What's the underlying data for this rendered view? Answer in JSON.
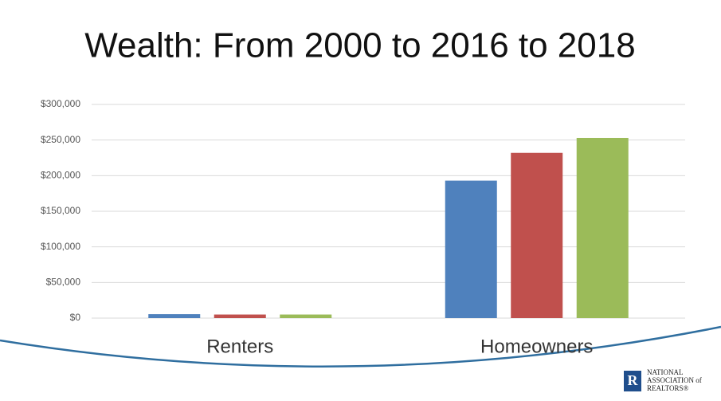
{
  "chart_data": {
    "type": "bar",
    "title": "Wealth: From 2000 to 2016 to 2018",
    "categories": [
      "Renters",
      "Homeowners"
    ],
    "series": [
      {
        "color": "#4f81bd",
        "values": [
          5500,
          193000
        ]
      },
      {
        "color": "#c0504d",
        "values": [
          5000,
          232000
        ]
      },
      {
        "color": "#9bbb59",
        "values": [
          5000,
          253000
        ]
      }
    ],
    "ylim": [
      0,
      300000
    ],
    "yticks": [
      {
        "value": 0,
        "label": "$0"
      },
      {
        "value": 50000,
        "label": "$50,000"
      },
      {
        "value": 100000,
        "label": "$100,000"
      },
      {
        "value": 150000,
        "label": "$150,000"
      },
      {
        "value": 200000,
        "label": "$200,000"
      },
      {
        "value": 250000,
        "label": "$250,000"
      },
      {
        "value": 300000,
        "label": "$300,000"
      }
    ],
    "grid": true
  },
  "logo": {
    "mark": "R",
    "lines": [
      "NATIONAL",
      "ASSOCIATION of",
      "REALTORS®"
    ]
  }
}
